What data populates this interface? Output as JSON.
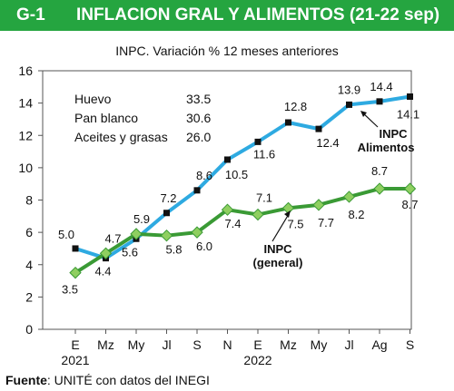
{
  "header": {
    "code": "G-1",
    "title": "INFLACION GRAL Y ALIMENTOS (21-22 sep)"
  },
  "chart_data": {
    "type": "line",
    "title": "INPC. Variación % 12 meses anteriores",
    "categories": [
      "E",
      "Mz",
      "My",
      "Jl",
      "S",
      "N",
      "E",
      "Mz",
      "My",
      "Jl",
      "Ag",
      "S"
    ],
    "year_labels": [
      {
        "index": 0,
        "label": "2021"
      },
      {
        "index": 6,
        "label": "2022"
      }
    ],
    "ylim": [
      0,
      16
    ],
    "yticks": [
      0,
      2,
      4,
      6,
      8,
      10,
      12,
      14,
      16
    ],
    "series": [
      {
        "name": "INPC Alimentos",
        "values": [
          5.0,
          4.4,
          5.6,
          7.2,
          8.6,
          10.5,
          11.6,
          12.8,
          12.4,
          13.9,
          14.1,
          14.4
        ],
        "labels": [
          "5.0",
          "4.4",
          "5.6",
          "7.2",
          "8.6",
          "10.5",
          "11.6",
          "12.8",
          "12.4",
          "13.9",
          "14.1",
          "14.4"
        ],
        "color": "#2eaae1",
        "marker": "square",
        "marker_color": "#111111",
        "label_lines": [
          "INPC",
          "Alimentos"
        ]
      },
      {
        "name": "INPC (general)",
        "values": [
          3.5,
          4.7,
          5.9,
          5.8,
          6.0,
          7.4,
          7.1,
          7.5,
          7.7,
          8.2,
          8.7,
          8.7
        ],
        "labels": [
          "3.5",
          "4.7",
          "5.9",
          "5.8",
          "6.0",
          "7.4",
          "7.1",
          "7.5",
          "7.7",
          "8.2",
          "8.7",
          "8.7"
        ],
        "color": "#3a9a35",
        "marker": "diamond",
        "marker_color": "#8fcf60",
        "label_lines": [
          "INPC",
          "(general)"
        ]
      }
    ],
    "annotations": [
      {
        "label": "Huevo",
        "value": "33.5"
      },
      {
        "label": "Pan blanco",
        "value": "30.6"
      },
      {
        "label": "Aceites y grasas",
        "value": "26.0"
      }
    ],
    "grid": false
  },
  "source": {
    "label": "Fuente",
    "text": ": UNITÉ con datos del INEGI"
  }
}
